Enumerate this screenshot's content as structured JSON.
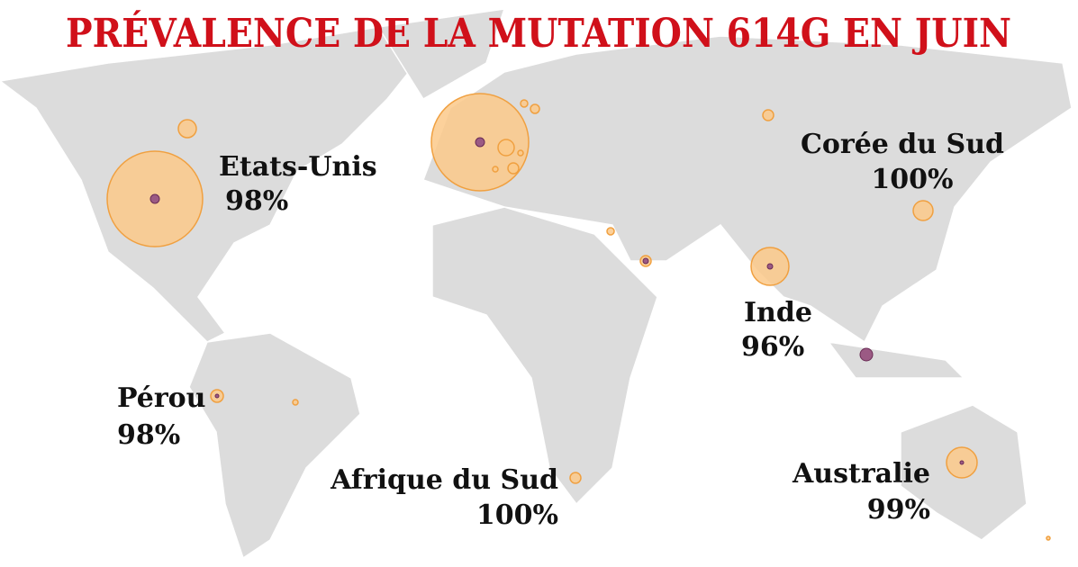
{
  "title": "PRÉVALENCE DE LA MUTATION 614G EN JUIN",
  "labels": [
    {
      "name": "Etats-Unis",
      "prevalence": "98%"
    },
    {
      "name": "Corée du Sud",
      "prevalence": "100%"
    },
    {
      "name": "Inde",
      "prevalence": "96%"
    },
    {
      "name": "Pérou",
      "prevalence": "98%"
    },
    {
      "name": "Afrique du Sud",
      "prevalence": "100%"
    },
    {
      "name": "Australie",
      "prevalence": "99%"
    }
  ]
}
